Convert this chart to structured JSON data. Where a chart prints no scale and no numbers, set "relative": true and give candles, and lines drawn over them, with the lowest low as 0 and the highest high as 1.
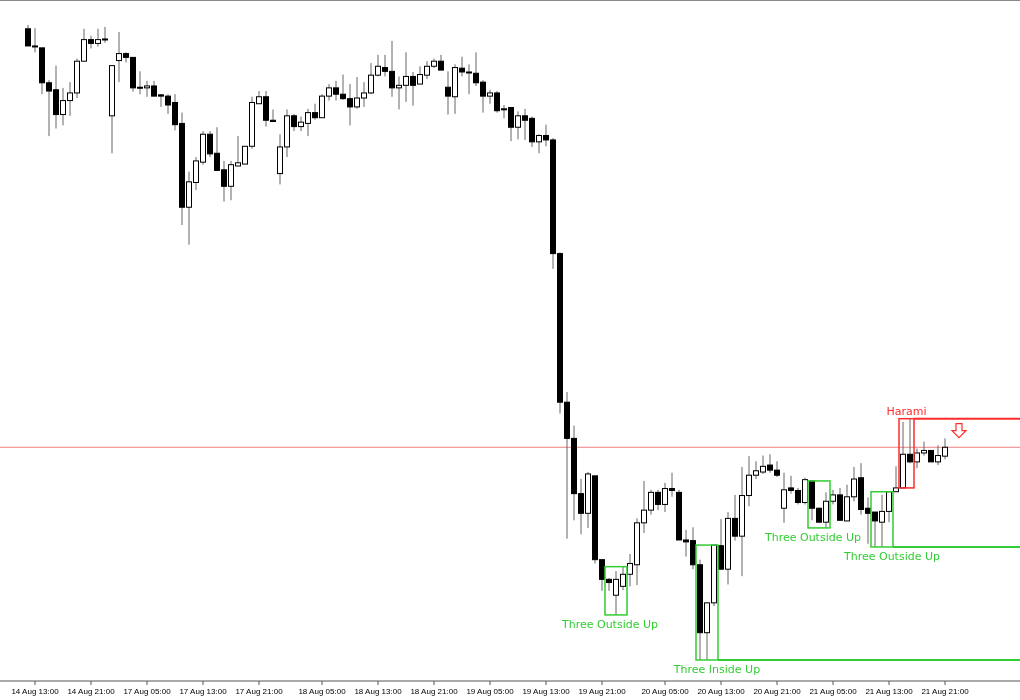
{
  "chart_data": {
    "type": "candlestick",
    "relative": true,
    "categories": [
      null,
      "14 Aug 13:00",
      null,
      null,
      null,
      null,
      null,
      null,
      null,
      "14 Aug 21:00",
      null,
      null,
      null,
      null,
      null,
      null,
      null,
      "17 Aug 05:00",
      null,
      null,
      null,
      null,
      null,
      null,
      null,
      "17 Aug 13:00",
      null,
      null,
      null,
      null,
      null,
      null,
      null,
      "17 Aug 21:00",
      null,
      null,
      null,
      null,
      null,
      null,
      null,
      null,
      "18 Aug 05:00",
      null,
      null,
      null,
      null,
      null,
      null,
      null,
      "18 Aug 13:00",
      null,
      null,
      null,
      null,
      null,
      null,
      null,
      "18 Aug 21:00",
      null,
      null,
      null,
      null,
      null,
      null,
      null,
      "19 Aug 05:00",
      null,
      null,
      null,
      null,
      null,
      null,
      null,
      "19 Aug 13:00",
      null,
      null,
      null,
      null,
      null,
      null,
      null,
      "19 Aug 21:00",
      null,
      null,
      null,
      null,
      null,
      null,
      null,
      null,
      "20 Aug 05:00",
      null,
      null,
      null,
      null,
      null,
      null,
      null,
      "20 Aug 13:00",
      null,
      null,
      null,
      null,
      null,
      null,
      null,
      "20 Aug 21:00",
      null,
      null,
      null,
      null,
      null,
      null,
      null,
      "21 Aug 05:00",
      null,
      null,
      null,
      null,
      null,
      null,
      null,
      "21 Aug 13:00",
      null,
      null,
      null,
      null,
      null,
      null,
      null,
      "21 Aug 21:00"
    ],
    "ohlc": [
      [
        0.994,
        1,
        0.967,
        0.967
      ],
      [
        0.967,
        0.995,
        0.957,
        0.966
      ],
      [
        0.964,
        0.964,
        0.891,
        0.909
      ],
      [
        0.909,
        0.913,
        0.825,
        0.896
      ],
      [
        0.898,
        0.936,
        0.837,
        0.859
      ],
      [
        0.859,
        0.901,
        0.842,
        0.881
      ],
      [
        0.881,
        0.91,
        0.857,
        0.893
      ],
      [
        0.893,
        0.947,
        0.885,
        0.943
      ],
      [
        0.943,
        0.994,
        0.943,
        0.977
      ],
      [
        0.977,
        0.983,
        0.963,
        0.971
      ],
      [
        0.971,
        0.994,
        0.966,
        0.977
      ],
      [
        0.978,
        0.997,
        0.972,
        0.977
      ],
      [
        0.857,
        0.936,
        0.798,
        0.936
      ],
      [
        0.944,
        0.989,
        0.91,
        0.955
      ],
      [
        0.955,
        0.957,
        0.941,
        0.949
      ],
      [
        0.949,
        0.949,
        0.895,
        0.901
      ],
      [
        0.902,
        0.927,
        0.891,
        0.901
      ],
      [
        0.901,
        0.912,
        0.887,
        0.904
      ],
      [
        0.904,
        0.912,
        0.888,
        0.888
      ],
      [
        0.89,
        0.891,
        0.871,
        0.888
      ],
      [
        0.888,
        0.891,
        0.86,
        0.874
      ],
      [
        0.878,
        0.891,
        0.834,
        0.843
      ],
      [
        0.845,
        0.862,
        0.685,
        0.713
      ],
      [
        0.713,
        0.769,
        0.654,
        0.753
      ],
      [
        0.752,
        0.792,
        0.74,
        0.786
      ],
      [
        0.784,
        0.833,
        0.78,
        0.828
      ],
      [
        0.828,
        0.833,
        0.792,
        0.797
      ],
      [
        0.798,
        0.839,
        0.771,
        0.771
      ],
      [
        0.772,
        0.786,
        0.722,
        0.746
      ],
      [
        0.746,
        0.786,
        0.724,
        0.78
      ],
      [
        0.778,
        0.825,
        0.778,
        0.783
      ],
      [
        0.781,
        0.809,
        0.781,
        0.809
      ],
      [
        0.809,
        0.887,
        0.805,
        0.878
      ],
      [
        0.876,
        0.896,
        0.876,
        0.887
      ],
      [
        0.887,
        0.896,
        0.84,
        0.85
      ],
      [
        0.85,
        0.867,
        0.848,
        0.848
      ],
      [
        0.766,
        0.828,
        0.749,
        0.808
      ],
      [
        0.808,
        0.867,
        0.792,
        0.857
      ],
      [
        0.857,
        0.86,
        0.833,
        0.84
      ],
      [
        0.84,
        0.856,
        0.833,
        0.847
      ],
      [
        0.845,
        0.868,
        0.825,
        0.862
      ],
      [
        0.862,
        0.876,
        0.851,
        0.854
      ],
      [
        0.854,
        0.891,
        0.854,
        0.888
      ],
      [
        0.888,
        0.907,
        0.881,
        0.901
      ],
      [
        0.901,
        0.912,
        0.881,
        0.891
      ],
      [
        0.891,
        0.922,
        0.882,
        0.884
      ],
      [
        0.884,
        0.907,
        0.842,
        0.871
      ],
      [
        0.871,
        0.918,
        0.868,
        0.885
      ],
      [
        0.885,
        0.91,
        0.871,
        0.893
      ],
      [
        0.893,
        0.94,
        0.891,
        0.921
      ],
      [
        0.921,
        0.953,
        0.919,
        0.935
      ],
      [
        0.933,
        0.953,
        0.919,
        0.927
      ],
      [
        0.927,
        0.975,
        0.887,
        0.901
      ],
      [
        0.901,
        0.919,
        0.867,
        0.905
      ],
      [
        0.905,
        0.957,
        0.879,
        0.919
      ],
      [
        0.919,
        0.926,
        0.873,
        0.905
      ],
      [
        0.907,
        0.935,
        0.907,
        0.922
      ],
      [
        0.921,
        0.943,
        0.915,
        0.935
      ],
      [
        0.935,
        0.947,
        0.932,
        0.943
      ],
      [
        0.943,
        0.953,
        0.929,
        0.929
      ],
      [
        0.902,
        0.927,
        0.859,
        0.888
      ],
      [
        0.887,
        0.938,
        0.86,
        0.933
      ],
      [
        0.932,
        0.95,
        0.919,
        0.926
      ],
      [
        0.926,
        0.938,
        0.891,
        0.926
      ],
      [
        0.924,
        0.957,
        0.904,
        0.909
      ],
      [
        0.91,
        0.913,
        0.862,
        0.888
      ],
      [
        0.888,
        0.898,
        0.876,
        0.893
      ],
      [
        0.893,
        0.896,
        0.862,
        0.865
      ],
      [
        0.868,
        0.874,
        0.853,
        0.867
      ],
      [
        0.87,
        0.871,
        0.817,
        0.839
      ],
      [
        0.839,
        0.864,
        0.82,
        0.857
      ],
      [
        0.857,
        0.868,
        0.819,
        0.85
      ],
      [
        0.853,
        0.856,
        0.808,
        0.816
      ],
      [
        0.816,
        0.828,
        0.798,
        0.826
      ],
      [
        0.826,
        0.843,
        0.809,
        0.819
      ],
      [
        0.819,
        0.822,
        0.616,
        0.64
      ],
      [
        0.64,
        0.642,
        0.388,
        0.406
      ],
      [
        0.406,
        0.422,
        0.191,
        0.349
      ],
      [
        0.349,
        0.369,
        0.22,
        0.262
      ],
      [
        0.262,
        0.285,
        0.198,
        0.231
      ],
      [
        0.231,
        0.296,
        0.208,
        0.293
      ],
      [
        0.29,
        0.29,
        0.152,
        0.158
      ],
      [
        0.158,
        0.158,
        0.109,
        0.127
      ],
      [
        0.127,
        0.129,
        0.109,
        0.122
      ],
      [
        0.102,
        0.14,
        0.071,
        0.127
      ],
      [
        0.116,
        0.147,
        0.11,
        0.135
      ],
      [
        0.135,
        0.167,
        0.116,
        0.152
      ],
      [
        0.15,
        0.223,
        0.118,
        0.216
      ],
      [
        0.216,
        0.282,
        0.2,
        0.236
      ],
      [
        0.236,
        0.268,
        0.229,
        0.264
      ],
      [
        0.264,
        0.268,
        0.236,
        0.245
      ],
      [
        0.245,
        0.279,
        0.233,
        0.27
      ],
      [
        0.27,
        0.295,
        0.257,
        0.267
      ],
      [
        0.264,
        0.268,
        0.189,
        0.189
      ],
      [
        0.189,
        0.205,
        0.163,
        0.186
      ],
      [
        0.188,
        0.209,
        0.143,
        0.15
      ],
      [
        0.15,
        0.158,
        0,
        0.043
      ],
      [
        0.043,
        0.091,
        0,
        0.09
      ],
      [
        0.09,
        0.181,
        0.085,
        0.181
      ],
      [
        0.18,
        0.222,
        0.143,
        0.143
      ],
      [
        0.143,
        0.233,
        0.119,
        0.223
      ],
      [
        0.223,
        0.26,
        0.188,
        0.195
      ],
      [
        0.195,
        0.304,
        0.132,
        0.259
      ],
      [
        0.259,
        0.321,
        0.242,
        0.291
      ],
      [
        0.291,
        0.313,
        0.285,
        0.298
      ],
      [
        0.296,
        0.322,
        0.293,
        0.305
      ],
      [
        0.307,
        0.324,
        0.295,
        0.299
      ],
      [
        0.299,
        0.313,
        0.288,
        0.291
      ],
      [
        0.239,
        0.295,
        0.216,
        0.268
      ],
      [
        0.271,
        0.29,
        0.262,
        0.267
      ],
      [
        0.267,
        0.271,
        0.245,
        0.248
      ],
      [
        0.248,
        0.287,
        0.245,
        0.284
      ],
      [
        0.282,
        0.282,
        0.22,
        0.239
      ],
      [
        0.239,
        0.24,
        0.217,
        0.217
      ],
      [
        0.217,
        0.264,
        0.208,
        0.25
      ],
      [
        0.25,
        0.268,
        0.245,
        0.26
      ],
      [
        0.26,
        0.271,
        0.22,
        0.22
      ],
      [
        0.219,
        0.276,
        0.219,
        0.257
      ],
      [
        0.257,
        0.304,
        0.25,
        0.285
      ],
      [
        0.287,
        0.31,
        0.229,
        0.237
      ],
      [
        0.239,
        0.256,
        0.183,
        0.231
      ],
      [
        0.233,
        0.233,
        0.178,
        0.219
      ],
      [
        0.217,
        0.26,
        0.178,
        0.234
      ],
      [
        0.234,
        0.265,
        0.217,
        0.265
      ],
      [
        0.265,
        0.305,
        0.265,
        0.271
      ],
      [
        0.271,
        0.375,
        0.271,
        0.324
      ],
      [
        0.324,
        0.38,
        0.31,
        0.312
      ],
      [
        0.312,
        0.333,
        0.302,
        0.326
      ],
      [
        0.326,
        0.344,
        0.322,
        0.33
      ],
      [
        0.33,
        0.33,
        0.312,
        0.312
      ],
      [
        0.312,
        0.338,
        0.307,
        0.322
      ],
      [
        0.321,
        0.349,
        0.316,
        0.335
      ]
    ],
    "ref_lines": [
      {
        "axis": "y",
        "value": 0.335,
        "color": "#f08080"
      }
    ],
    "annotations": [
      "Three Outside Up",
      "Three Inside Up",
      "Three Outside Up",
      "Three Outside Up",
      "Harami"
    ]
  }
}
